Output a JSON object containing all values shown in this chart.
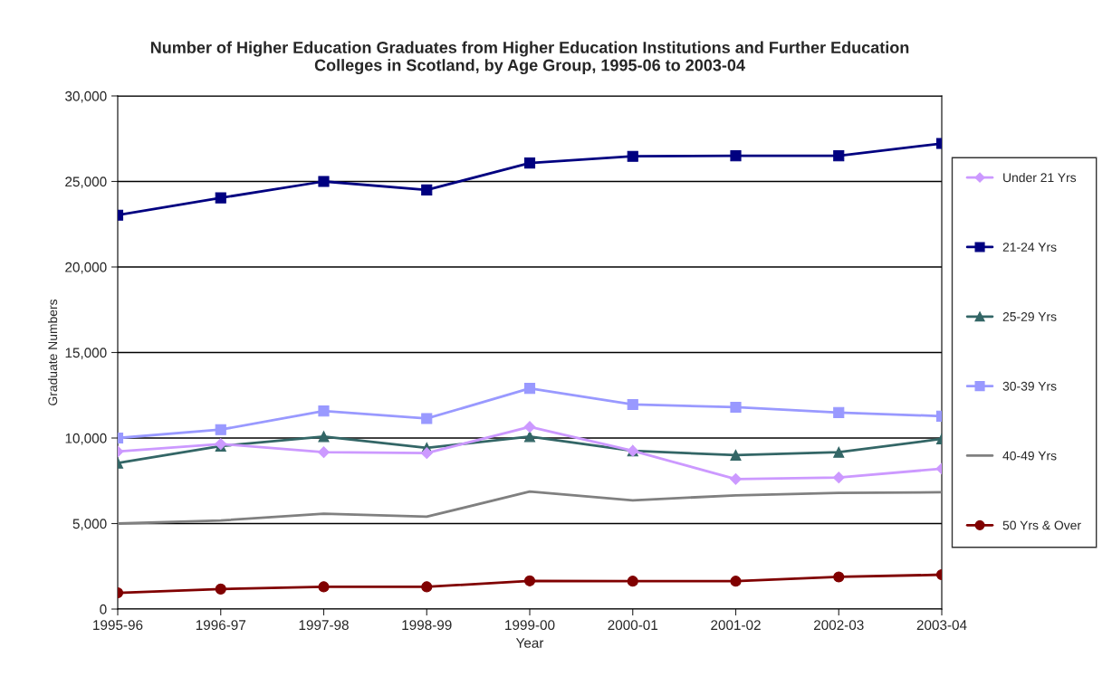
{
  "chart_data": {
    "type": "line",
    "title": "Number of Higher Education Graduates from Higher Education Institutions and Further Education\nColleges in Scotland, by Age Group, 1995-06 to 2003-04",
    "xlabel": "Year",
    "ylabel": "Graduate Numbers",
    "categories": [
      "1995-96",
      "1996-97",
      "1997-98",
      "1998-99",
      "1999-00",
      "2000-01",
      "2001-02",
      "2002-03",
      "2003-04"
    ],
    "series": [
      {
        "name": "Under 21 Yrs",
        "color": "#cc99ff",
        "marker": "diamond",
        "values": [
          9210,
          9650,
          9170,
          9120,
          10650,
          9250,
          7600,
          7690,
          8210
        ]
      },
      {
        "name": "21-24 Yrs",
        "color": "#000080",
        "marker": "square",
        "values": [
          23030,
          24040,
          25000,
          24500,
          26080,
          26470,
          26500,
          26500,
          27220
        ]
      },
      {
        "name": "25-29 Yrs",
        "color": "#336666",
        "marker": "triangle",
        "values": [
          8540,
          9530,
          10090,
          9420,
          10090,
          9250,
          9000,
          9170,
          9950
        ]
      },
      {
        "name": "30-39 Yrs",
        "color": "#9999ff",
        "marker": "square",
        "values": [
          10000,
          10490,
          11580,
          11140,
          12900,
          11960,
          11800,
          11490,
          11280
        ]
      },
      {
        "name": "40-49 Yrs",
        "color": "#808080",
        "marker": "none",
        "values": [
          5000,
          5180,
          5580,
          5400,
          6870,
          6360,
          6650,
          6790,
          6830
        ]
      },
      {
        "name": "50 Yrs & Over",
        "color": "#800000",
        "marker": "circle",
        "values": [
          950,
          1170,
          1300,
          1300,
          1650,
          1630,
          1630,
          1880,
          2010
        ]
      }
    ],
    "ylim": [
      0,
      30000
    ],
    "yticks": [
      {
        "value": 0,
        "label": "0"
      },
      {
        "value": 5000,
        "label": "5,000"
      },
      {
        "value": 10000,
        "label": "10,000"
      },
      {
        "value": 15000,
        "label": "15,000"
      },
      {
        "value": 20000,
        "label": "20,000"
      },
      {
        "value": 25000,
        "label": "25,000"
      },
      {
        "value": 30000,
        "label": "30,000"
      }
    ],
    "grid": "y",
    "legend": "right",
    "line_style": "solid"
  }
}
